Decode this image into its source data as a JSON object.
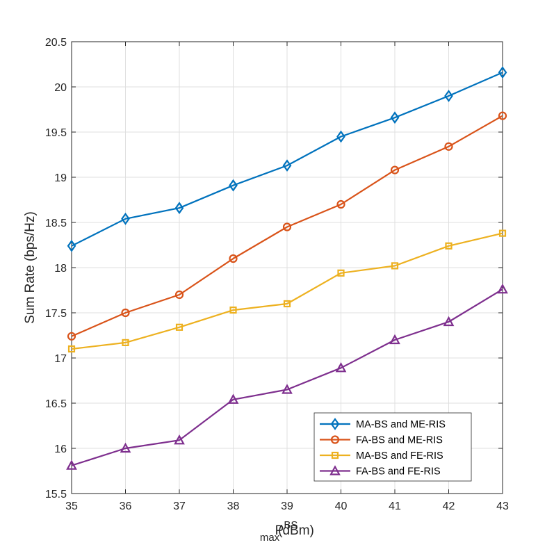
{
  "chart_data": {
    "type": "line",
    "title": "",
    "xlabel_main": "P",
    "xlabel_sup": "BS",
    "xlabel_sub": "max",
    "xlabel_unit": "(dBm)",
    "ylabel": "Sum Rate (bps/Hz)",
    "x": [
      35,
      36,
      37,
      38,
      39,
      40,
      41,
      42,
      43
    ],
    "xlim": [
      35,
      43
    ],
    "ylim": [
      15.5,
      20.5
    ],
    "xticks": [
      35,
      36,
      37,
      38,
      39,
      40,
      41,
      42,
      43
    ],
    "yticks": [
      15.5,
      16,
      16.5,
      17,
      17.5,
      18,
      18.5,
      19,
      19.5,
      20,
      20.5
    ],
    "ytick_labels": [
      "15.5",
      "16",
      "16.5",
      "17",
      "17.5",
      "18",
      "18.5",
      "19",
      "19.5",
      "20",
      "20.5"
    ],
    "grid": true,
    "legend_position": "bottom-right",
    "series": [
      {
        "name": "MA-BS and ME-RIS",
        "color": "#0072BD",
        "marker": "diamond",
        "values": [
          18.24,
          18.54,
          18.66,
          18.91,
          19.13,
          19.45,
          19.66,
          19.9,
          20.16
        ]
      },
      {
        "name": "FA-BS and ME-RIS",
        "color": "#D95319",
        "marker": "circle",
        "values": [
          17.24,
          17.5,
          17.7,
          18.1,
          18.45,
          18.7,
          19.08,
          19.34,
          19.68
        ]
      },
      {
        "name": "MA-BS and FE-RIS",
        "color": "#EDB120",
        "marker": "square",
        "values": [
          17.1,
          17.17,
          17.34,
          17.53,
          17.6,
          17.94,
          18.02,
          18.24,
          18.38
        ]
      },
      {
        "name": "FA-BS and FE-RIS",
        "color": "#7E2F8E",
        "marker": "triangle",
        "values": [
          15.81,
          16.0,
          16.09,
          16.54,
          16.65,
          16.89,
          17.2,
          17.4,
          17.76
        ]
      }
    ]
  }
}
